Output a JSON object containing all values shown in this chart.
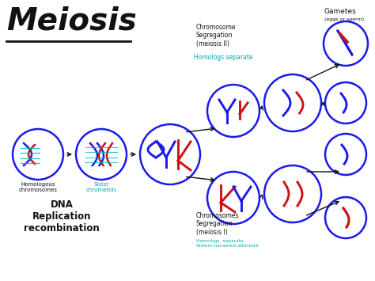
{
  "title": "Meiosis",
  "bg_color": "#ffffff",
  "circle_color": "#1a1aee",
  "blue_chrom": "#1a1aee",
  "red_chrom": "#cc1111",
  "cyan_chrom": "#00bbbb",
  "arrow_color": "#111111",
  "text_color": "#111111",
  "teal_text": "#00aaaa",
  "gray_text": "#777777",
  "labels": {
    "title": "Meiosis",
    "homologous": "Homologous\nchromosomes",
    "sister": "Sister\nchromatids",
    "dna": "DNA\nReplication\nrecombination",
    "chrom_seg1": "Chromosomes\nSegregation\n(meiosis I)",
    "chrom_seg2": "Chromosome\nSegregation\n(meiosis II)",
    "homologs_sep_I": "Homologs  separate\nSisters remained attached",
    "homologs_sep_II": "Homologs separate",
    "gametes": "Gametes",
    "eggs_sperm": "(eggs or sperm)"
  }
}
